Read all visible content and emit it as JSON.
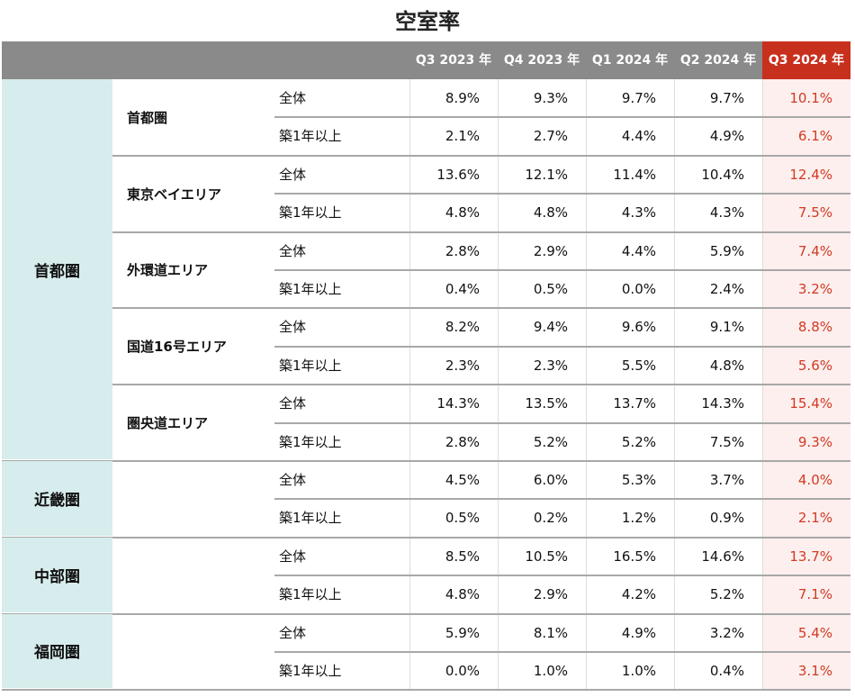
{
  "title": "空室率",
  "columns": [
    "Q3 2023 年",
    "Q4 2023 年",
    "Q1 2024 年",
    "Q2 2024 年",
    "Q3 2024 年"
  ],
  "highlight_color": "#c8301e",
  "row_labels": {
    "total": "全体",
    "over1": "築1年以上"
  },
  "regions": [
    {
      "name": "首都圏",
      "subs": [
        {
          "name": "首都圏",
          "rows": [
            [
              "8.9%",
              "9.3%",
              "9.7%",
              "9.7%",
              "10.1%"
            ],
            [
              "2.1%",
              "2.7%",
              "4.4%",
              "4.9%",
              "6.1%"
            ]
          ]
        },
        {
          "name": "東京ベイエリア",
          "rows": [
            [
              "13.6%",
              "12.1%",
              "11.4%",
              "10.4%",
              "12.4%"
            ],
            [
              "4.8%",
              "4.8%",
              "4.3%",
              "4.3%",
              "7.5%"
            ]
          ]
        },
        {
          "name": "外環道エリア",
          "rows": [
            [
              "2.8%",
              "2.9%",
              "4.4%",
              "5.9%",
              "7.4%"
            ],
            [
              "0.4%",
              "0.5%",
              "0.0%",
              "2.4%",
              "3.2%"
            ]
          ]
        },
        {
          "name": "国道16号エリア",
          "rows": [
            [
              "8.2%",
              "9.4%",
              "9.6%",
              "9.1%",
              "8.8%"
            ],
            [
              "2.3%",
              "2.3%",
              "5.5%",
              "4.8%",
              "5.6%"
            ]
          ]
        },
        {
          "name": "圏央道エリア",
          "rows": [
            [
              "14.3%",
              "13.5%",
              "13.7%",
              "14.3%",
              "15.4%"
            ],
            [
              "2.8%",
              "5.2%",
              "5.2%",
              "7.5%",
              "9.3%"
            ]
          ]
        }
      ]
    },
    {
      "name": "近畿圏",
      "subs": [
        {
          "name": "",
          "rows": [
            [
              "4.5%",
              "6.0%",
              "5.3%",
              "3.7%",
              "4.0%"
            ],
            [
              "0.5%",
              "0.2%",
              "1.2%",
              "0.9%",
              "2.1%"
            ]
          ]
        }
      ]
    },
    {
      "name": "中部圏",
      "subs": [
        {
          "name": "",
          "rows": [
            [
              "8.5%",
              "10.5%",
              "16.5%",
              "14.6%",
              "13.7%"
            ],
            [
              "4.8%",
              "2.9%",
              "4.2%",
              "5.2%",
              "7.1%"
            ]
          ]
        }
      ]
    },
    {
      "name": "福岡圏",
      "subs": [
        {
          "name": "",
          "rows": [
            [
              "5.9%",
              "8.1%",
              "4.9%",
              "3.2%",
              "5.4%"
            ],
            [
              "0.0%",
              "1.0%",
              "1.0%",
              "0.4%",
              "3.1%"
            ]
          ]
        }
      ]
    }
  ]
}
